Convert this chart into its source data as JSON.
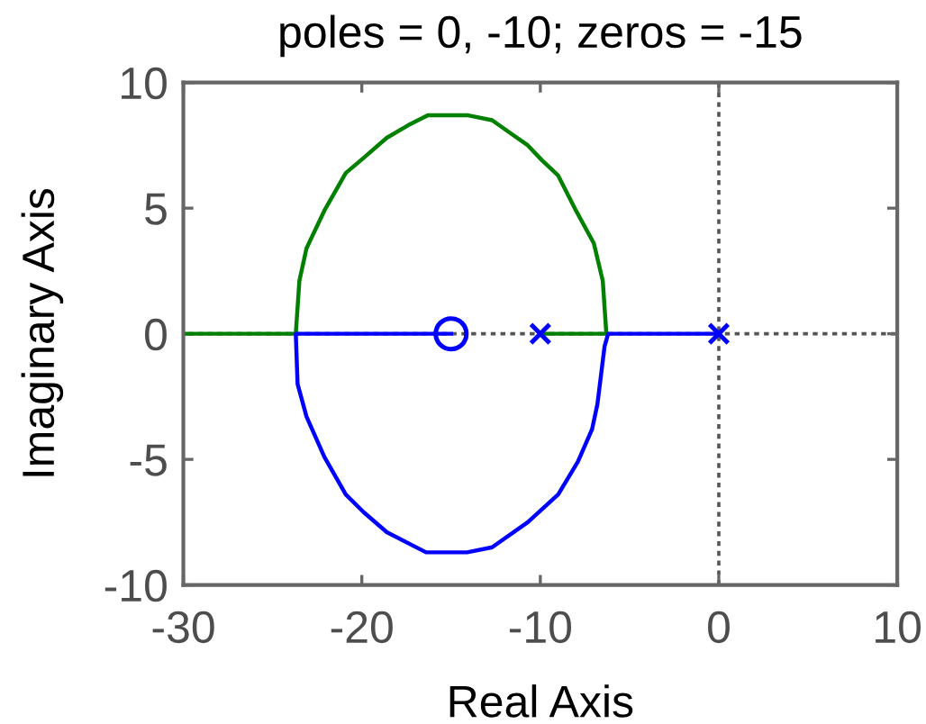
{
  "chart_data": {
    "type": "line",
    "title": "poles = 0, -10; zeros = -15",
    "xlabel": "Real Axis",
    "ylabel": "Imaginary Axis",
    "xlim": [
      -30,
      10
    ],
    "ylim": [
      -10,
      10
    ],
    "xticks": [
      -30,
      -20,
      -10,
      0,
      10
    ],
    "yticks": [
      -10,
      -5,
      0,
      5,
      10
    ],
    "grid": false,
    "series": [
      {
        "color": "#008000",
        "x": [
          -10,
          -6.3,
          -6.5,
          -7.0,
          -8.0,
          -9.0,
          -9.9,
          -10.7,
          -11.7,
          -12.7,
          -14.1,
          -16.3,
          -17.4,
          -18.6,
          -19.9,
          -20.9,
          -22.1,
          -23.1,
          -23.5,
          -23.7,
          -30
        ],
        "values": [
          0,
          0,
          2.1,
          3.6,
          4.9,
          6.3,
          6.9,
          7.5,
          8.0,
          8.5,
          8.7,
          8.7,
          8.3,
          7.8,
          7.0,
          6.4,
          4.9,
          3.4,
          2.1,
          0,
          0
        ]
      },
      {
        "color": "#0000ff",
        "x": [
          0,
          -6.2,
          -6.4,
          -6.8,
          -7.1,
          -7.9,
          -9.0,
          -10.7,
          -12.7,
          -14.1,
          -16.4,
          -18.6,
          -19.9,
          -20.9,
          -22.1,
          -23.1,
          -23.6,
          -23.7,
          -15
        ],
        "values": [
          0,
          0,
          -0.5,
          -2.8,
          -3.8,
          -5.1,
          -6.4,
          -7.5,
          -8.5,
          -8.7,
          -8.7,
          -7.9,
          -7.1,
          -6.4,
          -4.9,
          -3.3,
          -2.0,
          0,
          0
        ]
      },
      {
        "type": "scatter",
        "color": "#0000ff",
        "marker": "cross",
        "x": [
          0,
          -10
        ],
        "values": [
          0,
          0
        ]
      },
      {
        "type": "scatter",
        "color": "#0000ff",
        "marker": "circle",
        "x": [
          -15
        ],
        "values": [
          0
        ]
      }
    ],
    "ref_lines": [
      {
        "axis": "x",
        "value": 0,
        "line_style": "dotted",
        "color": "#555555"
      },
      {
        "axis": "y",
        "value": 0,
        "line_style": "dotted",
        "color": "#555555"
      }
    ]
  }
}
